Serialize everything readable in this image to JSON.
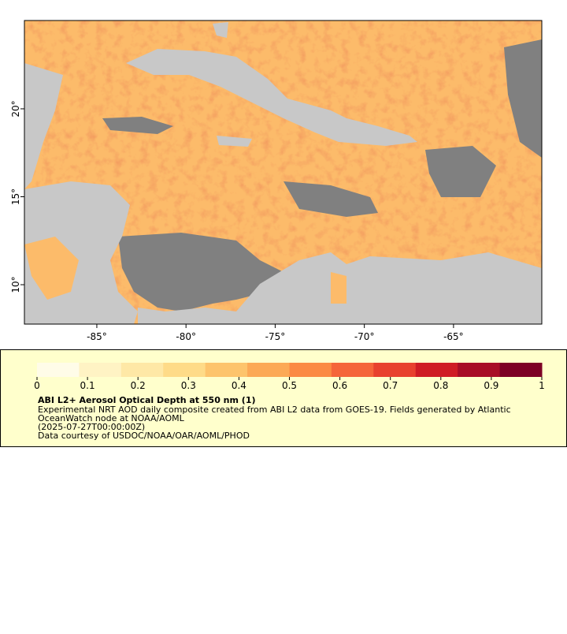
{
  "map": {
    "xlim": [
      -89.06,
      -60.05
    ],
    "ylim": [
      7.76,
      25.02
    ],
    "xticks": [
      {
        "value": -85,
        "label": "-85°"
      },
      {
        "value": -80,
        "label": "-80°"
      },
      {
        "value": -75,
        "label": "-75°"
      },
      {
        "value": -70,
        "label": "-70°"
      },
      {
        "value": -65,
        "label": "-65°"
      }
    ],
    "yticks": [
      {
        "value": 10,
        "label": "10°"
      },
      {
        "value": 15,
        "label": "15°"
      },
      {
        "value": 20,
        "label": "20°"
      }
    ],
    "colorbar": {
      "lim": [
        0,
        1
      ],
      "ticks": [
        0,
        0.1,
        0.2,
        0.3,
        0.4,
        0.5,
        0.6,
        0.7,
        0.8,
        0.9,
        1
      ],
      "colors": [
        "#fffce8",
        "#fff3c4",
        "#fee8a6",
        "#fedb88",
        "#fdc46c",
        "#fca956",
        "#fb8a44",
        "#f5653a",
        "#e8412e",
        "#cf1c24",
        "#a80d26",
        "#7d0025"
      ]
    },
    "legend": {
      "title": "ABI L2+ Aerosol Optical Depth at 550 nm (1)",
      "lines": [
        "Experimental NRT AOD daily composite created from ABI L2 data from GOES-19. Fields generated by Atlantic",
        "OceanWatch node at NOAA/AOML",
        "(2025-07-27T00:00:00Z)",
        "Data courtesy of USDOC/NOAA/OAR/AOML/PHOD"
      ]
    }
  }
}
